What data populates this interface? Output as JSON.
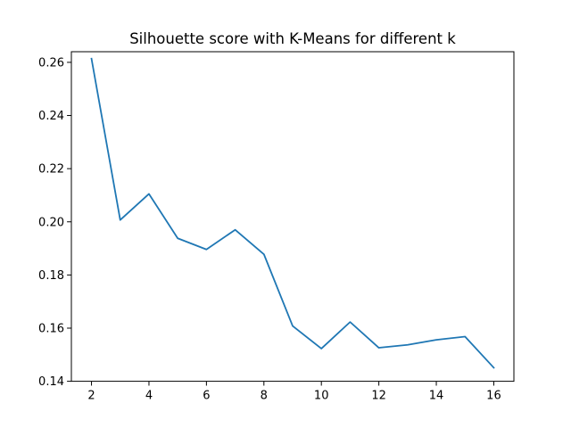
{
  "chart_data": {
    "type": "line",
    "title": "Silhouette score with K-Means for different k",
    "xlabel": "",
    "ylabel": "",
    "xlim": [
      1.3,
      16.7
    ],
    "ylim": [
      0.14,
      0.264
    ],
    "grid": false,
    "x_ticks": [
      2,
      4,
      6,
      8,
      10,
      12,
      14,
      16
    ],
    "y_ticks": [
      0.14,
      0.16,
      0.18,
      0.2,
      0.22,
      0.24,
      0.26
    ],
    "x_tick_labels": [
      "2",
      "4",
      "6",
      "8",
      "10",
      "12",
      "14",
      "16"
    ],
    "y_tick_labels": [
      "0.14",
      "0.16",
      "0.18",
      "0.20",
      "0.22",
      "0.24",
      "0.26"
    ],
    "series": [
      {
        "color": "#1f77b4",
        "x": [
          2,
          3,
          4,
          5,
          6,
          7,
          8,
          9,
          10,
          11,
          12,
          13,
          14,
          15,
          16
        ],
        "y": [
          0.2614,
          0.2007,
          0.2105,
          0.1938,
          0.1896,
          0.197,
          0.1878,
          0.1608,
          0.1523,
          0.1623,
          0.1526,
          0.1537,
          0.1556,
          0.1568,
          0.1451
        ]
      }
    ]
  }
}
